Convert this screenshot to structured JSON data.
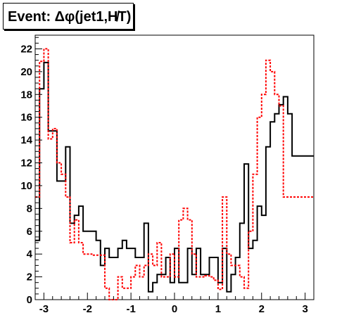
{
  "chart_data": {
    "type": "step",
    "title": "Event: Δφ(jet1,H̸T)",
    "xlabel": "",
    "ylabel": "",
    "xlim": [
      -3.2,
      3.2
    ],
    "ylim": [
      0,
      23.2
    ],
    "xticks": [
      "-3",
      "-2",
      "-1",
      "0",
      "1",
      "2",
      "3"
    ],
    "yticks": [
      "0",
      "2",
      "4",
      "6",
      "8",
      "10",
      "12",
      "14",
      "16",
      "18",
      "20",
      "22"
    ],
    "bin_edges": [
      -3.2,
      -3.1,
      -3.0,
      -2.9,
      -2.8,
      -2.7,
      -2.6,
      -2.5,
      -2.4,
      -2.3,
      -2.2,
      -2.1,
      -2.0,
      -1.9,
      -1.8,
      -1.7,
      -1.6,
      -1.5,
      -1.4,
      -1.3,
      -1.2,
      -1.1,
      -1.0,
      -0.9,
      -0.8,
      -0.7,
      -0.6,
      -0.5,
      -0.4,
      -0.3,
      -0.2,
      -0.1,
      0.0,
      0.1,
      0.2,
      0.3,
      0.4,
      0.5,
      0.6,
      0.7,
      0.8,
      0.9,
      1.0,
      1.1,
      1.2,
      1.3,
      1.4,
      1.5,
      1.6,
      1.7,
      1.8,
      1.9,
      2.0,
      2.1,
      2.2,
      2.3,
      2.4,
      2.5,
      2.6,
      2.7,
      2.8,
      2.9,
      3.0,
      3.1,
      3.2
    ],
    "series": [
      {
        "color": "#000000",
        "style": "solid",
        "values": [
          5.2,
          18.5,
          20.8,
          14.8,
          14.8,
          10.4,
          10.4,
          13.4,
          6.7,
          7.4,
          8.2,
          6.0,
          6.0,
          6.0,
          5.2,
          3.0,
          4.5,
          3.7,
          3.7,
          4.5,
          5.2,
          4.5,
          4.5,
          3.7,
          3.7,
          6.7,
          0.7,
          1.5,
          2.2,
          2.2,
          3.7,
          1.5,
          4.5,
          1.5,
          1.5,
          4.5,
          2.2,
          4.5,
          2.2,
          2.2,
          3.7,
          3.7,
          1.5,
          4.5,
          0.7,
          2.2,
          3.7,
          6.7,
          11.9,
          4.5,
          5.2,
          8.2,
          7.4,
          13.4,
          15.6,
          16.3,
          17.1,
          17.8,
          16.3,
          12.6,
          12.6,
          12.6,
          12.6,
          12.6
        ]
      },
      {
        "color": "#ff0000",
        "style": "dashed",
        "values": [
          9.0,
          20.9,
          22.0,
          14.1,
          15.0,
          12.0,
          11.0,
          9.0,
          5.0,
          7.0,
          5.0,
          4.0,
          4.0,
          3.9,
          3.9,
          3.9,
          1.0,
          0.0,
          0.0,
          2.0,
          1.0,
          1.0,
          2.0,
          3.0,
          2.0,
          3.0,
          4.0,
          3.0,
          5.0,
          2.0,
          2.0,
          4.0,
          2.0,
          7.0,
          8.0,
          7.0,
          4.0,
          2.0,
          2.0,
          2.1,
          2.0,
          1.7,
          0.9,
          9.0,
          4.0,
          3.0,
          3.0,
          2.0,
          1.0,
          6.0,
          11.0,
          16.0,
          18.0,
          21.0,
          20.0,
          18.0,
          17.0,
          9.0,
          9.0,
          9.0,
          9.0,
          9.0,
          9.0,
          9.0
        ]
      }
    ],
    "grid": false,
    "legend": "none"
  }
}
